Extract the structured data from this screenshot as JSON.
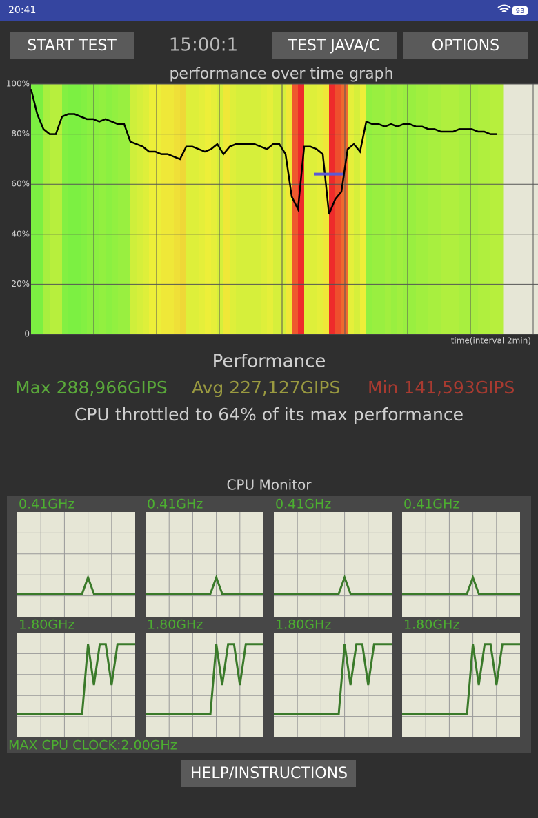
{
  "status_bar": {
    "time": "20:41",
    "battery": "93"
  },
  "buttons": {
    "start": "START TEST",
    "timer": "15:00:1",
    "java": "TEST JAVA/C",
    "options": "OPTIONS",
    "help": "HELP/INSTRUCTIONS"
  },
  "chart_data": {
    "type": "line",
    "title": "performance over time graph",
    "x_label": "time(interval 2min)",
    "ylim": [
      0,
      100
    ],
    "yticks": [
      0,
      {
        "value": 20,
        "label": "20%"
      },
      {
        "value": 40,
        "label": "40%"
      },
      {
        "value": 60,
        "label": "60%"
      },
      {
        "value": 80,
        "label": "80%"
      },
      {
        "value": 100,
        "label": "100%"
      }
    ],
    "grid": true,
    "color": "#000000",
    "avg_line": 64,
    "avg_line_color": "#5a5ad6",
    "values": [
      98,
      88,
      82,
      80,
      80,
      87,
      88,
      88,
      87,
      86,
      86,
      85,
      86,
      85,
      84,
      84,
      77,
      76,
      75,
      73,
      73,
      72,
      72,
      71,
      70,
      75,
      75,
      74,
      73,
      74,
      76,
      72,
      75,
      76,
      76,
      76,
      76,
      75,
      74,
      76,
      76,
      72,
      55,
      50,
      75,
      75,
      74,
      72,
      48,
      54,
      57,
      74,
      76,
      73,
      85,
      84,
      84,
      83,
      84,
      83,
      84,
      84,
      83,
      83,
      82,
      82,
      81,
      81,
      81,
      82,
      82,
      82,
      81,
      81,
      80,
      80
    ]
  },
  "performance": {
    "title": "Performance",
    "max": "Max 288,966GIPS",
    "avg": "Avg 227,127GIPS",
    "min": "Min 141,593GIPS",
    "throttle": "CPU throttled to 64% of its max performance"
  },
  "cpu_monitor": {
    "title": "CPU Monitor",
    "max_clock": "MAX CPU CLOCK:2.00GHz",
    "ylim": [
      0,
      2
    ],
    "color": "#3a7a2a",
    "cores": [
      {
        "label": "0.41GHz",
        "values": [
          0.44,
          0.44,
          0.44,
          0.44,
          0.44,
          0.44,
          0.44,
          0.44,
          0.44,
          0.44,
          0.44,
          0.44,
          0.75,
          0.44,
          0.44,
          0.44,
          0.44,
          0.44,
          0.44,
          0.44,
          0.44
        ]
      },
      {
        "label": "0.41GHz",
        "values": [
          0.44,
          0.44,
          0.44,
          0.44,
          0.44,
          0.44,
          0.44,
          0.44,
          0.44,
          0.44,
          0.44,
          0.44,
          0.75,
          0.44,
          0.44,
          0.44,
          0.44,
          0.44,
          0.44,
          0.44,
          0.44
        ]
      },
      {
        "label": "0.41GHz",
        "values": [
          0.44,
          0.44,
          0.44,
          0.44,
          0.44,
          0.44,
          0.44,
          0.44,
          0.44,
          0.44,
          0.44,
          0.44,
          0.75,
          0.44,
          0.44,
          0.44,
          0.44,
          0.44,
          0.44,
          0.44,
          0.44
        ]
      },
      {
        "label": "0.41GHz",
        "values": [
          0.44,
          0.44,
          0.44,
          0.44,
          0.44,
          0.44,
          0.44,
          0.44,
          0.44,
          0.44,
          0.44,
          0.44,
          0.75,
          0.44,
          0.44,
          0.44,
          0.44,
          0.44,
          0.44,
          0.44,
          0.44
        ]
      },
      {
        "label": "1.80GHz",
        "values": [
          0.44,
          0.44,
          0.44,
          0.44,
          0.44,
          0.44,
          0.44,
          0.44,
          0.44,
          0.44,
          0.44,
          0.44,
          1.78,
          1.0,
          1.78,
          1.78,
          1.0,
          1.78,
          1.78,
          1.78,
          1.78
        ]
      },
      {
        "label": "1.80GHz",
        "values": [
          0.44,
          0.44,
          0.44,
          0.44,
          0.44,
          0.44,
          0.44,
          0.44,
          0.44,
          0.44,
          0.44,
          0.44,
          1.78,
          1.0,
          1.78,
          1.78,
          1.0,
          1.78,
          1.78,
          1.78,
          1.78
        ]
      },
      {
        "label": "1.80GHz",
        "values": [
          0.44,
          0.44,
          0.44,
          0.44,
          0.44,
          0.44,
          0.44,
          0.44,
          0.44,
          0.44,
          0.44,
          0.44,
          1.78,
          1.0,
          1.78,
          1.78,
          1.0,
          1.78,
          1.78,
          1.78,
          1.78
        ]
      },
      {
        "label": "1.80GHz",
        "values": [
          0.44,
          0.44,
          0.44,
          0.44,
          0.44,
          0.44,
          0.44,
          0.44,
          0.44,
          0.44,
          0.44,
          0.44,
          1.78,
          1.0,
          1.78,
          1.78,
          1.0,
          1.78,
          1.78,
          1.78,
          1.78
        ]
      }
    ]
  }
}
